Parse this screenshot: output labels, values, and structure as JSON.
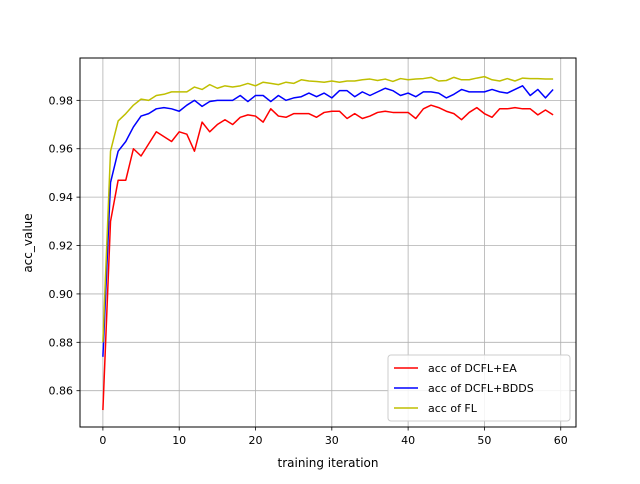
{
  "chart_data": {
    "type": "line",
    "title": "",
    "xlabel": "training iteration",
    "ylabel": "acc_value",
    "xlim": [
      -3,
      62
    ],
    "ylim": [
      0.845,
      0.9975
    ],
    "xticks": [
      0,
      10,
      20,
      30,
      40,
      50,
      60
    ],
    "yticks": [
      0.86,
      0.88,
      0.9,
      0.92,
      0.94,
      0.96,
      0.98
    ],
    "ytick_labels": [
      "0.86",
      "0.88",
      "0.90",
      "0.92",
      "0.94",
      "0.96",
      "0.98"
    ],
    "grid": true,
    "legend_position": "lower-right",
    "x": [
      0,
      1,
      2,
      3,
      4,
      5,
      6,
      7,
      8,
      9,
      10,
      11,
      12,
      13,
      14,
      15,
      16,
      17,
      18,
      19,
      20,
      21,
      22,
      23,
      24,
      25,
      26,
      27,
      28,
      29,
      30,
      31,
      32,
      33,
      34,
      35,
      36,
      37,
      38,
      39,
      40,
      41,
      42,
      43,
      44,
      45,
      46,
      47,
      48,
      49,
      50,
      51,
      52,
      53,
      54,
      55,
      56,
      57,
      58,
      59
    ],
    "series": [
      {
        "name": "acc of DCFL+EA",
        "color": "#ff0000",
        "values": [
          0.852,
          0.93,
          0.947,
          0.947,
          0.96,
          0.957,
          0.962,
          0.967,
          0.965,
          0.963,
          0.967,
          0.966,
          0.959,
          0.971,
          0.967,
          0.97,
          0.972,
          0.97,
          0.973,
          0.974,
          0.9735,
          0.971,
          0.9765,
          0.9735,
          0.973,
          0.9745,
          0.9745,
          0.9745,
          0.973,
          0.975,
          0.9755,
          0.9755,
          0.9725,
          0.9745,
          0.9725,
          0.9735,
          0.975,
          0.9755,
          0.975,
          0.975,
          0.975,
          0.9725,
          0.9765,
          0.978,
          0.977,
          0.9755,
          0.9745,
          0.972,
          0.975,
          0.977,
          0.9745,
          0.973,
          0.9765,
          0.9765,
          0.977,
          0.9765,
          0.9765,
          0.974,
          0.976,
          0.974
        ]
      },
      {
        "name": "acc of DCFL+BDDS",
        "color": "#0000ff",
        "values": [
          0.874,
          0.946,
          0.959,
          0.963,
          0.969,
          0.9735,
          0.9745,
          0.9765,
          0.977,
          0.9765,
          0.9755,
          0.978,
          0.98,
          0.9775,
          0.9795,
          0.98,
          0.98,
          0.98,
          0.982,
          0.9795,
          0.982,
          0.982,
          0.9795,
          0.982,
          0.98,
          0.981,
          0.9815,
          0.983,
          0.9815,
          0.983,
          0.981,
          0.984,
          0.984,
          0.9815,
          0.9835,
          0.982,
          0.9835,
          0.985,
          0.984,
          0.982,
          0.983,
          0.9815,
          0.9835,
          0.9835,
          0.983,
          0.981,
          0.9825,
          0.9845,
          0.9835,
          0.9835,
          0.9835,
          0.9845,
          0.9835,
          0.983,
          0.9845,
          0.986,
          0.982,
          0.9845,
          0.981,
          0.9845
        ]
      },
      {
        "name": "acc of FL",
        "color": "#bfbf00",
        "values": [
          0.88,
          0.959,
          0.9715,
          0.9745,
          0.978,
          0.9805,
          0.98,
          0.982,
          0.9825,
          0.9835,
          0.9835,
          0.9835,
          0.9855,
          0.9845,
          0.9865,
          0.985,
          0.986,
          0.9855,
          0.986,
          0.987,
          0.986,
          0.9875,
          0.987,
          0.9865,
          0.9875,
          0.987,
          0.9885,
          0.988,
          0.9878,
          0.9875,
          0.988,
          0.9875,
          0.988,
          0.988,
          0.9885,
          0.9888,
          0.9882,
          0.9888,
          0.9878,
          0.989,
          0.9885,
          0.9888,
          0.989,
          0.9895,
          0.988,
          0.9882,
          0.9895,
          0.9885,
          0.9885,
          0.9892,
          0.9898,
          0.9885,
          0.988,
          0.989,
          0.988,
          0.9892,
          0.989,
          0.989,
          0.9888,
          0.9888
        ]
      }
    ]
  }
}
